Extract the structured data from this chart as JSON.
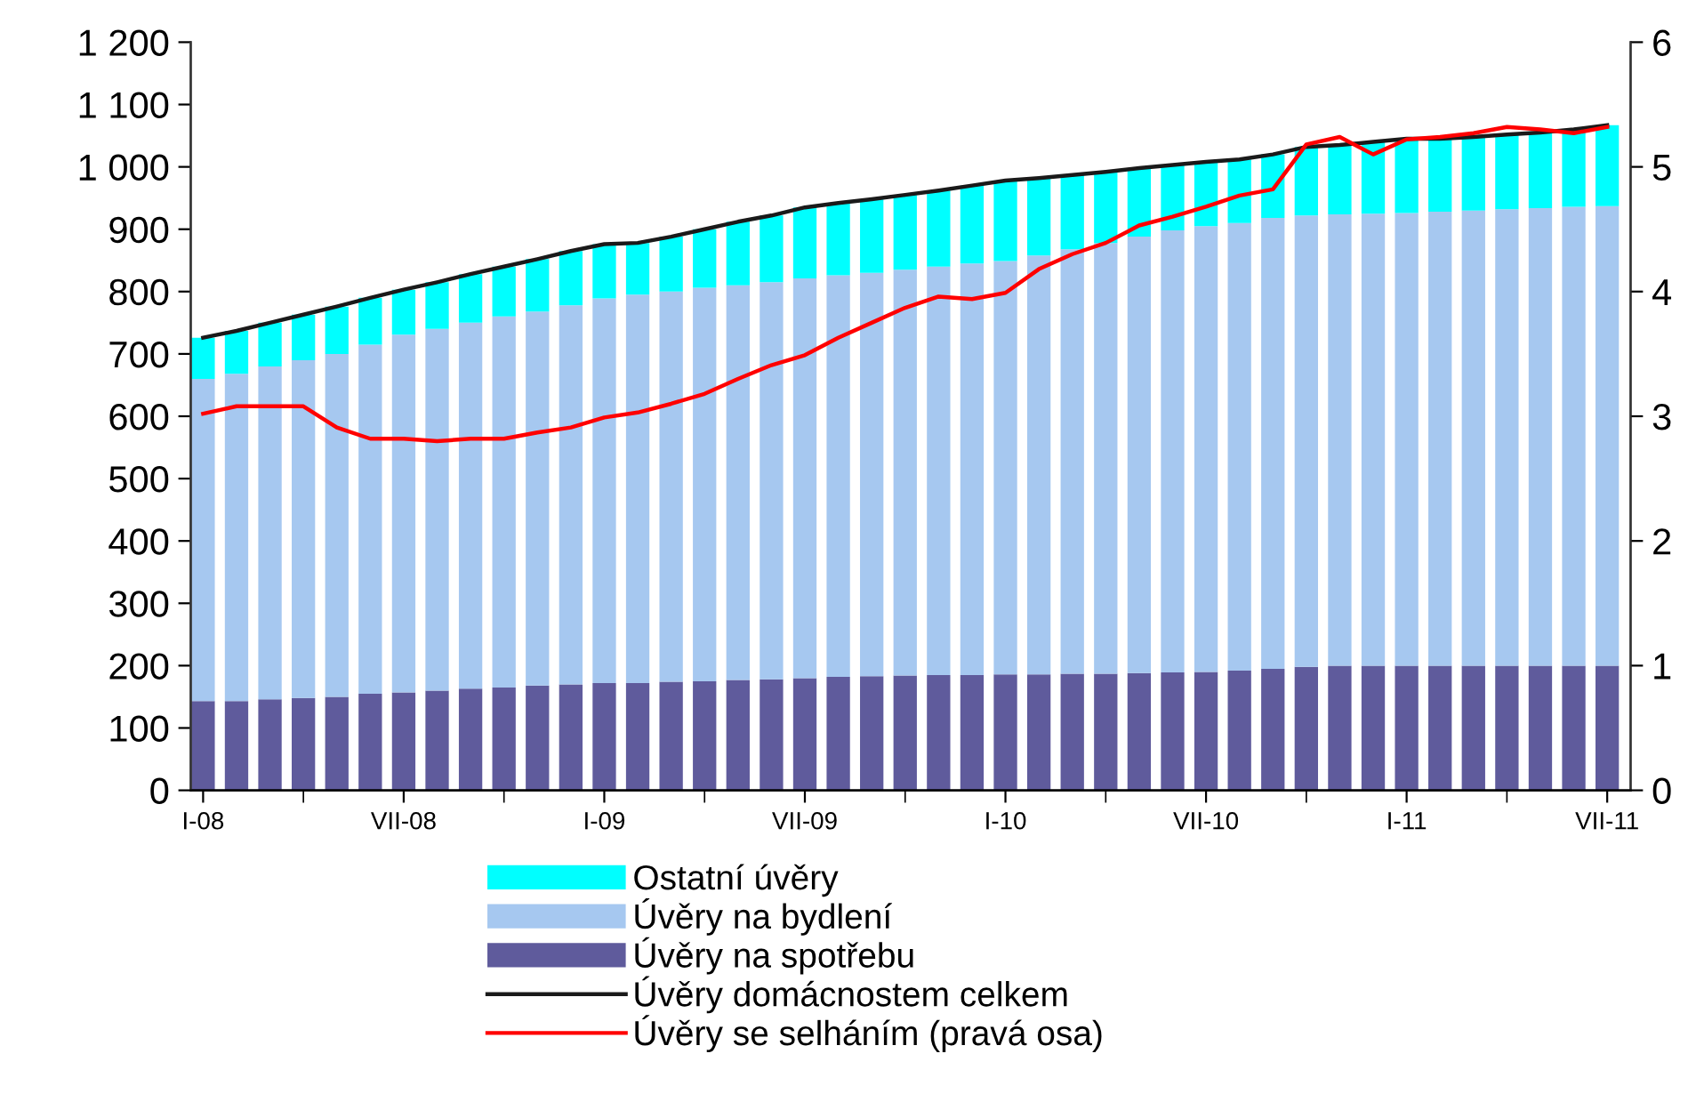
{
  "chart_data": {
    "type": "bar",
    "stacked": true,
    "categories": [
      "I-08",
      null,
      null,
      null,
      null,
      null,
      "VII-08",
      null,
      null,
      null,
      null,
      null,
      "I-09",
      null,
      null,
      null,
      null,
      null,
      "VII-09",
      null,
      null,
      null,
      null,
      null,
      "I-10",
      null,
      null,
      null,
      null,
      null,
      "VII-10",
      null,
      null,
      null,
      null,
      null,
      "I-11",
      null,
      null,
      null,
      null,
      null,
      "VII-11"
    ],
    "series": [
      {
        "name": "Úvěry na spotřebu",
        "color": "#5f5b9c",
        "values": [
          143,
          143,
          146,
          148,
          150,
          155,
          157,
          160,
          163,
          165,
          168,
          170,
          172,
          172,
          174,
          175,
          177,
          178,
          180,
          182,
          183,
          184,
          185,
          185,
          186,
          186,
          187,
          187,
          188,
          189,
          190,
          192,
          195,
          198,
          200,
          200,
          200,
          200,
          200,
          200,
          200,
          200,
          200
        ]
      },
      {
        "name": "Úvěry na bydlení",
        "color": "#a6c8f0",
        "values": [
          517,
          525,
          534,
          542,
          550,
          560,
          574,
          580,
          587,
          595,
          600,
          608,
          617,
          623,
          626,
          631,
          633,
          637,
          641,
          644,
          647,
          651,
          655,
          660,
          663,
          672,
          681,
          691,
          700,
          709,
          715,
          718,
          723,
          724,
          724,
          725,
          726,
          728,
          730,
          732,
          734,
          736,
          737
        ]
      },
      {
        "name": "Ostatní úvěry",
        "color": "#00ffff",
        "values": [
          66,
          69,
          70,
          73,
          76,
          75,
          72,
          75,
          78,
          80,
          84,
          87,
          87,
          83,
          88,
          94,
          102,
          107,
          114,
          116,
          118,
          120,
          122,
          125,
          129,
          124,
          119,
          114,
          110,
          105,
          103,
          102,
          102,
          110,
          111,
          115,
          119,
          117,
          118,
          120,
          121,
          124,
          130
        ]
      },
      {
        "name": "Úvěry domácnostem celkem",
        "type": "line",
        "color": "#1a1a1a",
        "values": [
          726,
          737,
          750,
          763,
          776,
          790,
          803,
          815,
          828,
          840,
          852,
          865,
          876,
          878,
          888,
          900,
          912,
          922,
          935,
          942,
          948,
          955,
          962,
          970,
          978,
          982,
          987,
          992,
          998,
          1003,
          1008,
          1012,
          1020,
          1032,
          1035,
          1040,
          1045,
          1045,
          1048,
          1052,
          1055,
          1060,
          1067
        ]
      },
      {
        "name": "Úvěry se selháním (pravá osa)",
        "type": "line",
        "axis": "y2",
        "color": "#ff0000",
        "values": [
          3.02,
          3.08,
          3.08,
          3.08,
          2.91,
          2.82,
          2.82,
          2.8,
          2.82,
          2.82,
          2.87,
          2.91,
          2.99,
          3.03,
          3.1,
          3.18,
          3.3,
          3.41,
          3.49,
          3.63,
          3.75,
          3.87,
          3.96,
          3.94,
          3.99,
          4.18,
          4.3,
          4.39,
          4.53,
          4.6,
          4.68,
          4.77,
          4.82,
          5.18,
          5.24,
          5.1,
          5.22,
          5.24,
          5.27,
          5.32,
          5.3,
          5.27,
          5.32
        ]
      }
    ],
    "ylim": [
      0,
      1200
    ],
    "yticks": [
      0,
      100,
      200,
      300,
      400,
      500,
      600,
      700,
      800,
      900,
      {
        "value": 1000,
        "label": "1 000"
      },
      {
        "value": 1100,
        "label": "1 100"
      },
      {
        "value": 1200,
        "label": "1 200"
      }
    ],
    "y2lim": [
      0,
      6
    ],
    "y2ticks": [
      0,
      1,
      2,
      3,
      4,
      5,
      6
    ],
    "grid": false,
    "legend": "bottom"
  }
}
